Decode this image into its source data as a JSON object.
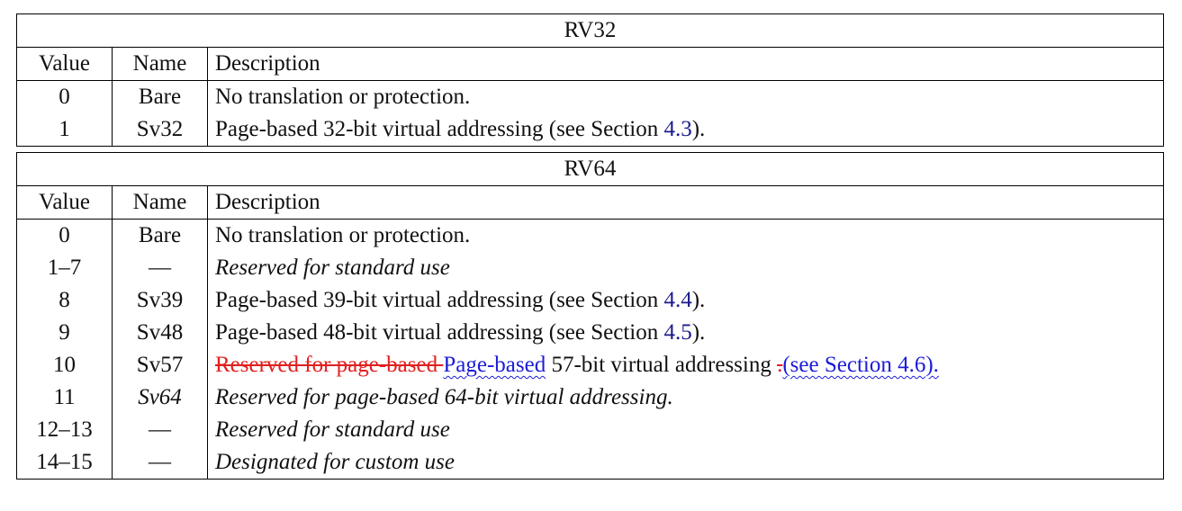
{
  "tables": [
    {
      "title": "RV32",
      "header": [
        "Value",
        "Name",
        "Description"
      ],
      "rows": [
        {
          "value": "0",
          "name": "Bare",
          "description": [
            {
              "text": "No translation or protection."
            }
          ]
        },
        {
          "value": "1",
          "name": "Sv32",
          "description": [
            {
              "text": "Page-based 32-bit virtual addressing (see Section "
            },
            {
              "text": "4.3",
              "style": "link"
            },
            {
              "text": ")."
            }
          ]
        }
      ]
    },
    {
      "title": "RV64",
      "header": [
        "Value",
        "Name",
        "Description"
      ],
      "rows": [
        {
          "value": "0",
          "name": "Bare",
          "description": [
            {
              "text": "No translation or protection."
            }
          ]
        },
        {
          "value": "1–7",
          "name": "—",
          "description": [
            {
              "text": "Reserved for standard use",
              "style": "italic"
            }
          ]
        },
        {
          "value": "8",
          "name": "Sv39",
          "description": [
            {
              "text": "Page-based 39-bit virtual addressing (see Section "
            },
            {
              "text": "4.4",
              "style": "link"
            },
            {
              "text": ")."
            }
          ]
        },
        {
          "value": "9",
          "name": "Sv48",
          "description": [
            {
              "text": "Page-based 48-bit virtual addressing (see Section "
            },
            {
              "text": "4.5",
              "style": "link"
            },
            {
              "text": ")."
            }
          ]
        },
        {
          "value": "10",
          "name": "Sv57",
          "description": [
            {
              "text": "Reserved for page-based ",
              "style": "deleted"
            },
            {
              "text": "Page-based",
              "style": "inserted"
            },
            {
              "text": " 57-bit virtual addressing "
            },
            {
              "text": ".",
              "style": "deleted"
            },
            {
              "text": "(see Section 4.6).",
              "style": "inserted"
            }
          ]
        },
        {
          "value": "11",
          "name": "Sv64",
          "name_style": "italic",
          "description": [
            {
              "text": "Reserved for page-based 64-bit virtual addressing.",
              "style": "italic"
            }
          ]
        },
        {
          "value": "12–13",
          "name": "—",
          "description": [
            {
              "text": "Reserved for standard use",
              "style": "italic"
            }
          ]
        },
        {
          "value": "14–15",
          "name": "—",
          "description": [
            {
              "text": "Designated for custom use",
              "style": "italic"
            }
          ]
        }
      ]
    }
  ]
}
